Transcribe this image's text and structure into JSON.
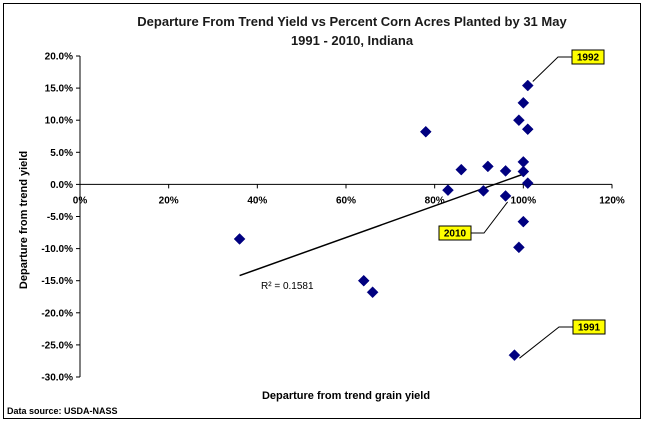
{
  "chart_data": {
    "type": "scatter",
    "title": "Departure From Trend Yield vs Percent Corn Acres Planted by 31 May",
    "subtitle": "1991 - 2010, Indiana",
    "xlabel": "Departure from trend grain yield",
    "ylabel": "Departure from trend yield",
    "xlim": [
      0,
      120
    ],
    "ylim": [
      -30,
      20
    ],
    "x_ticks": [
      0,
      20,
      40,
      60,
      80,
      100,
      120
    ],
    "y_ticks": [
      20,
      15,
      10,
      5,
      0,
      -5,
      -10,
      -15,
      -20,
      -25,
      -30
    ],
    "x_tick_labels": [
      "0%",
      "20%",
      "40%",
      "60%",
      "80%",
      "100%",
      "120%"
    ],
    "y_tick_labels": [
      "20.0%",
      "15.0%",
      "10.0%",
      "5.0%",
      "0.0%",
      "-5.0%",
      "-10.0%",
      "-15.0%",
      "-20.0%",
      "-25.0%",
      "-30.0%"
    ],
    "marker_color": "#000080",
    "trendline": {
      "x": [
        36,
        100
      ],
      "y": [
        -14.2,
        1.6
      ],
      "label": "R² = 0.1581"
    },
    "points": [
      {
        "x": 36,
        "y": -8.5
      },
      {
        "x": 64,
        "y": -15.0
      },
      {
        "x": 66,
        "y": -16.8
      },
      {
        "x": 78,
        "y": 8.2
      },
      {
        "x": 83,
        "y": -0.9
      },
      {
        "x": 86,
        "y": 2.3
      },
      {
        "x": 91,
        "y": -1.0
      },
      {
        "x": 92,
        "y": 2.8
      },
      {
        "x": 96,
        "y": 2.1
      },
      {
        "x": 96,
        "y": -1.8
      },
      {
        "x": 98,
        "y": -26.6
      },
      {
        "x": 99,
        "y": -9.8
      },
      {
        "x": 99,
        "y": 10.0
      },
      {
        "x": 100,
        "y": -5.8
      },
      {
        "x": 100,
        "y": 2.0
      },
      {
        "x": 100,
        "y": 3.5
      },
      {
        "x": 100,
        "y": 12.7
      },
      {
        "x": 101,
        "y": 15.4
      },
      {
        "x": 101,
        "y": 8.6
      },
      {
        "x": 101,
        "y": 0.2
      }
    ],
    "callouts": [
      {
        "label": "1992",
        "x": 101,
        "y": 15.4
      },
      {
        "label": "2010",
        "x": 96,
        "y": -1.8
      },
      {
        "label": "1991",
        "x": 98,
        "y": -26.6
      }
    ],
    "source": "Data source: USDA-NASS",
    "grid": false,
    "legend": "none"
  }
}
